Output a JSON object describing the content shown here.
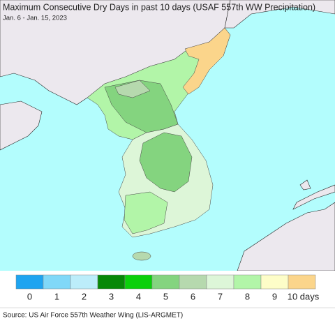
{
  "header": {
    "title": "Maximum Consecutive Dry Days in past 10 days (USAF 557th WW Precipitation)",
    "subtitle": "Jan. 6 - Jan. 15, 2023"
  },
  "legend": {
    "items": [
      {
        "label": "0",
        "color": "#1ea4f0"
      },
      {
        "label": "1",
        "color": "#80d8f8"
      },
      {
        "label": "2",
        "color": "#bcedfa"
      },
      {
        "label": "3",
        "color": "#078807"
      },
      {
        "label": "4",
        "color": "#0ad00a"
      },
      {
        "label": "5",
        "color": "#84d47f"
      },
      {
        "label": "6",
        "color": "#b6d9ae"
      },
      {
        "label": "7",
        "color": "#ddf6d8"
      },
      {
        "label": "8",
        "color": "#b2f5a8"
      },
      {
        "label": "9",
        "color": "#fdfdc8"
      },
      {
        "label": "10 days",
        "color": "#fbd58b"
      }
    ]
  },
  "footer": {
    "source": "Source: US Air Force 557th Weather Wing (LIS-ARGMET)"
  }
}
